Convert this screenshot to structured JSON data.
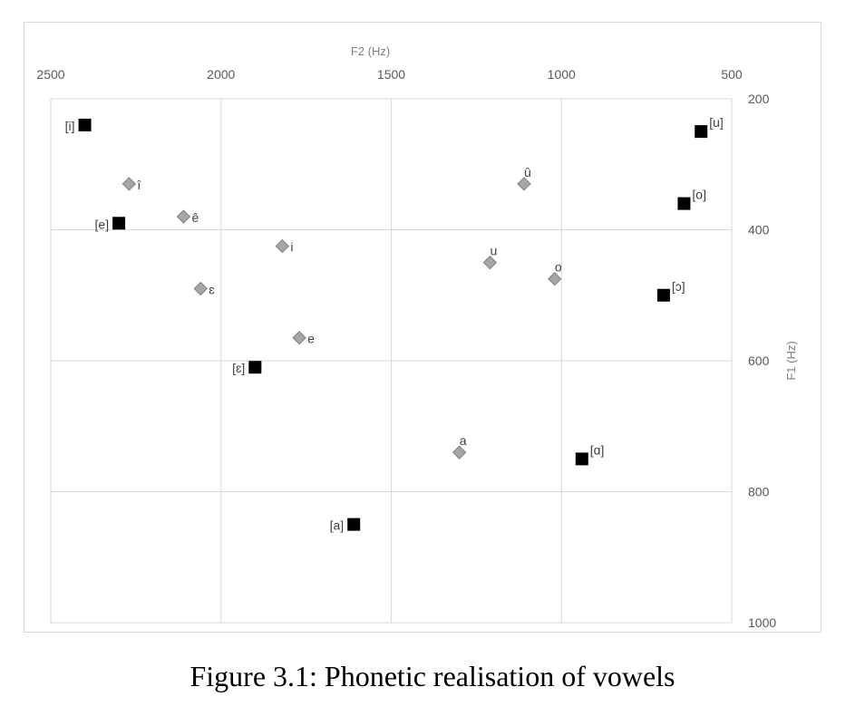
{
  "caption": "Figure 3.1: Phonetic realisation of vowels",
  "chart_data": {
    "type": "scatter",
    "title": "",
    "xlabel": "F2 (Hz)",
    "ylabel": "F1 (Hz)",
    "xlim": [
      2500,
      500
    ],
    "ylim": [
      200,
      1000
    ],
    "x_axis_position": "top",
    "y_axis_position": "right",
    "x_reversed": true,
    "y_reversed": true,
    "x_ticks": [
      "2500",
      "2000",
      "1500",
      "1000",
      "500"
    ],
    "y_ticks": [
      "200",
      "400",
      "600",
      "800",
      "1000"
    ],
    "grid": true,
    "legend": "none",
    "series": [
      {
        "marker": "square",
        "color": "#000000",
        "points": [
          {
            "label": "[i]",
            "x": 2400,
            "y": 240,
            "label_pos": "left"
          },
          {
            "label": "[e]",
            "x": 2300,
            "y": 390,
            "label_pos": "left"
          },
          {
            "label": "[ɛ]",
            "x": 1900,
            "y": 610,
            "label_pos": "left"
          },
          {
            "label": "[a]",
            "x": 1610,
            "y": 850,
            "label_pos": "left"
          },
          {
            "label": "[u]",
            "x": 590,
            "y": 250,
            "label_pos": "right"
          },
          {
            "label": "[o]",
            "x": 640,
            "y": 360,
            "label_pos": "right"
          },
          {
            "label": "[ɔ]",
            "x": 700,
            "y": 500,
            "label_pos": "right"
          },
          {
            "label": "[ɑ]",
            "x": 940,
            "y": 750,
            "label_pos": "right"
          }
        ]
      },
      {
        "marker": "diamond",
        "color": "#a6a6a6",
        "points": [
          {
            "label": "î",
            "x": 2270,
            "y": 330,
            "label_pos": "right"
          },
          {
            "label": "ê",
            "x": 2110,
            "y": 380,
            "label_pos": "right"
          },
          {
            "label": "ɛ",
            "x": 2060,
            "y": 490,
            "label_pos": "right"
          },
          {
            "label": "i",
            "x": 1820,
            "y": 425,
            "label_pos": "right"
          },
          {
            "label": "e",
            "x": 1770,
            "y": 565,
            "label_pos": "right"
          },
          {
            "label": "û",
            "x": 1110,
            "y": 330,
            "label_pos": "above"
          },
          {
            "label": "u",
            "x": 1210,
            "y": 450,
            "label_pos": "above"
          },
          {
            "label": "o",
            "x": 1020,
            "y": 475,
            "label_pos": "above"
          },
          {
            "label": "a",
            "x": 1300,
            "y": 740,
            "label_pos": "above"
          }
        ]
      }
    ]
  }
}
